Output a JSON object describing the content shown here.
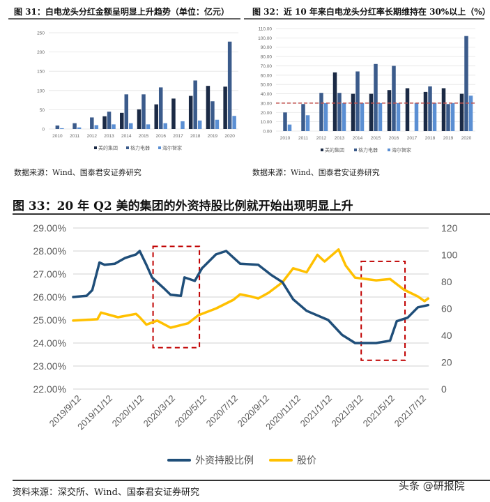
{
  "figure31": {
    "title": "图 31：白电龙头分红金额呈明显上升趋势（单位：亿元）",
    "source": "数据来源：Wind、国泰君安证券研究"
  },
  "figure32": {
    "title": "图 32：近 10 年来白电龙头分红率长期维持在 30%以上（%）",
    "source": "数据来源：Wind、国泰君安证券研究"
  },
  "figure33": {
    "title": "图 33：20 年 Q2 美的集团的外资持股比例就开始出现明显上升",
    "source": "资料来源：深交所、Wind、国泰君安证券研究"
  },
  "watermark": "头条 @研报院",
  "colors": {
    "midea": "#1b2a45",
    "gree": "#3b5b8b",
    "haier": "#5b8fd3",
    "holding": "#1f4e79",
    "price": "#ffc000",
    "highlight": "#c00000"
  },
  "chart_data": [
    {
      "type": "bar",
      "categories": [
        "2010",
        "2011",
        "2012",
        "2013",
        "2014",
        "2015",
        "2016",
        "2017",
        "2018",
        "2019",
        "2020"
      ],
      "series": [
        {
          "name": "美的集团",
          "values": [
            0,
            0,
            0,
            33,
            42,
            51,
            64,
            79,
            86,
            112,
            110
          ]
        },
        {
          "name": "格力电器",
          "values": [
            9,
            15,
            30,
            45,
            90,
            90,
            108,
            0,
            126,
            72,
            227
          ]
        },
        {
          "name": "海尔智家",
          "values": [
            2,
            4,
            10,
            12,
            15,
            12,
            15,
            20,
            22,
            24,
            34
          ]
        }
      ],
      "ylim": [
        0,
        250
      ],
      "yticks": [
        "0",
        "50",
        "100",
        "150",
        "200",
        "250"
      ],
      "grid": true,
      "legend": "bottom"
    },
    {
      "type": "bar",
      "categories": [
        "2010",
        "2011",
        "2012",
        "2013",
        "2014",
        "2015",
        "2016",
        "2017",
        "2018",
        "2019",
        "2020"
      ],
      "series": [
        {
          "name": "美的集团",
          "values": [
            0,
            0,
            0,
            63,
            40,
            40,
            44,
            46,
            42,
            46,
            40
          ]
        },
        {
          "name": "格力电器",
          "values": [
            20,
            29,
            41,
            41,
            64,
            72,
            70,
            0,
            48,
            29,
            102
          ]
        },
        {
          "name": "海尔智家",
          "values": [
            7,
            17,
            30,
            30,
            30,
            30,
            30,
            30,
            30,
            30,
            38
          ]
        }
      ],
      "reference_line": 30,
      "ylim": [
        0,
        110
      ],
      "yticks": [
        "0.00",
        "10.00",
        "20.00",
        "30.00",
        "40.00",
        "50.00",
        "60.00",
        "70.00",
        "80.00",
        "90.00",
        "100.00",
        "110.00"
      ],
      "grid": true,
      "legend": "bottom"
    },
    {
      "type": "line",
      "xticks": [
        "2019/9/12",
        "2019/11/12",
        "2020/1/12",
        "2020/3/12",
        "2020/5/12",
        "2020/7/12",
        "2020/9/12",
        "2020/11/12",
        "2021/1/12",
        "2021/3/12",
        "2021/5/12",
        "2021/7/12"
      ],
      "yticks_left": [
        "22.00%",
        "23.00%",
        "24.00%",
        "25.00%",
        "26.00%",
        "27.00%",
        "28.00%",
        "29.00%"
      ],
      "yticks_right": [
        "0",
        "20",
        "40",
        "60",
        "80",
        "100",
        "120"
      ],
      "ylim_left": [
        22,
        29
      ],
      "ylim_right": [
        0,
        120
      ],
      "grid": true,
      "legend": "bottom",
      "series": [
        {
          "name": "外资持股比例",
          "axis": "left",
          "x": [
            "2019-09-12",
            "2019-10-08",
            "2019-10-19",
            "2019-11-02",
            "2019-11-12",
            "2019-12-02",
            "2019-12-22",
            "2020-01-12",
            "2020-01-19",
            "2020-02-01",
            "2020-02-12",
            "2020-03-05",
            "2020-03-19",
            "2020-04-08",
            "2020-04-15",
            "2020-05-05",
            "2020-05-19",
            "2020-06-15",
            "2020-07-05",
            "2020-08-01",
            "2020-09-05",
            "2020-10-01",
            "2020-10-22",
            "2020-11-12",
            "2020-12-08",
            "2021-01-19",
            "2021-02-15",
            "2021-03-12",
            "2021-04-22",
            "2021-05-19",
            "2021-06-01",
            "2021-06-22",
            "2021-07-12",
            "2021-08-01"
          ],
          "y": [
            26.0,
            26.05,
            26.3,
            27.5,
            27.4,
            27.45,
            27.7,
            27.85,
            28.0,
            27.4,
            26.85,
            26.4,
            26.1,
            26.05,
            26.85,
            26.7,
            27.25,
            27.85,
            28.0,
            27.45,
            27.4,
            26.95,
            26.65,
            25.9,
            25.4,
            25.0,
            24.35,
            24.0,
            24.0,
            24.1,
            24.95,
            25.1,
            25.55,
            25.65
          ]
        },
        {
          "name": "股价",
          "axis": "right",
          "x": [
            "2019-09-12",
            "2019-10-29",
            "2019-11-05",
            "2019-12-08",
            "2020-01-12",
            "2020-01-19",
            "2020-02-01",
            "2020-02-22",
            "2020-03-19",
            "2020-04-22",
            "2020-05-12",
            "2020-06-15",
            "2020-07-19",
            "2020-08-01",
            "2020-08-22",
            "2020-09-05",
            "2020-09-25",
            "2020-10-22",
            "2020-11-12",
            "2020-12-08",
            "2020-12-29",
            "2021-01-12",
            "2021-02-08",
            "2021-02-22",
            "2021-03-12",
            "2021-04-22",
            "2021-05-19",
            "2021-06-15",
            "2021-07-12",
            "2021-07-25",
            "2021-08-01"
          ],
          "y": [
            51,
            52,
            57,
            53.5,
            56,
            53.5,
            48,
            51,
            45.7,
            49,
            55,
            60,
            66.5,
            70.6,
            69,
            67.5,
            71.7,
            79.5,
            90,
            87,
            100,
            95,
            104,
            92,
            83,
            81,
            82,
            74,
            69,
            65.5,
            67.5
          ]
        }
      ],
      "highlight_periods": [
        {
          "from": "2020-02-14",
          "to": "2020-05-14"
        },
        {
          "from": "2021-03-24",
          "to": "2021-06-17"
        }
      ]
    }
  ]
}
